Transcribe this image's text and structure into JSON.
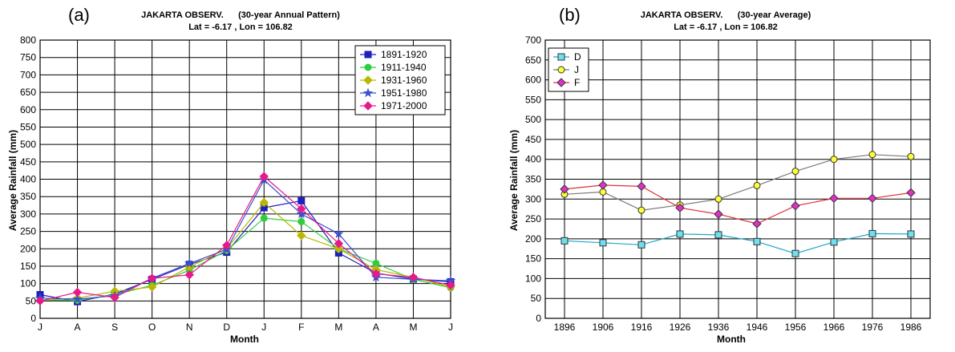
{
  "chart_data": [
    {
      "type": "line",
      "panel_label": "(a)",
      "title": "JAKARTA OBSERV.      (30-year Annual Pattern)",
      "subtitle": "Lat = -6.17 , Lon = 106.82",
      "xlabel": "Month",
      "ylabel": "Average Rainfall (mm)",
      "categories": [
        "J",
        "A",
        "S",
        "O",
        "N",
        "D",
        "J",
        "F",
        "M",
        "A",
        "M",
        "J"
      ],
      "ylim": [
        0,
        800
      ],
      "yticks": [
        0,
        50,
        100,
        150,
        200,
        250,
        300,
        350,
        400,
        450,
        500,
        550,
        600,
        650,
        700,
        750,
        800
      ],
      "grid": true,
      "legend_position": "top-right",
      "series": [
        {
          "name": "1891-1920",
          "color": "#1f1fbf",
          "marker": "square",
          "values": [
            68,
            48,
            70,
            112,
            155,
            190,
            318,
            338,
            188,
            130,
            113,
            105
          ]
        },
        {
          "name": "1911-1940",
          "color": "#2ecc40",
          "marker": "circle",
          "values": [
            52,
            52,
            68,
            95,
            138,
            195,
            288,
            278,
            200,
            158,
            112,
            88
          ]
        },
        {
          "name": "1931-1960",
          "color": "#b8b800",
          "marker": "diamond",
          "values": [
            52,
            58,
            78,
            90,
            148,
            200,
            333,
            238,
            200,
            140,
            118,
            90
          ]
        },
        {
          "name": "1951-1980",
          "color": "#3a4fd0",
          "marker": "star",
          "values": [
            58,
            55,
            65,
            115,
            158,
            198,
            398,
            300,
            243,
            118,
            112,
            108
          ]
        },
        {
          "name": "1971-2000",
          "color": "#e8198b",
          "marker": "diamond",
          "values": [
            50,
            75,
            60,
            115,
            125,
            210,
            408,
            315,
            215,
            128,
            118,
            95
          ]
        }
      ]
    },
    {
      "type": "line",
      "panel_label": "(b)",
      "title": "JAKARTA OBSERV.      (30-year Average)",
      "subtitle": "Lat = -6.17 , Lon = 106.82",
      "xlabel": "Month",
      "ylabel": "Average Rainfall (mm)",
      "categories": [
        "1896",
        "1906",
        "1916",
        "1926",
        "1936",
        "1946",
        "1956",
        "1966",
        "1976",
        "1986"
      ],
      "ylim": [
        0,
        700
      ],
      "yticks": [
        0,
        50,
        100,
        150,
        200,
        250,
        300,
        350,
        400,
        450,
        500,
        550,
        600,
        650,
        700
      ],
      "grid": true,
      "legend_position": "top-left",
      "series": [
        {
          "name": "D",
          "color": "#1fa8c8",
          "fill": "#6ee0f0",
          "marker": "square",
          "values": [
            195,
            190,
            185,
            212,
            210,
            193,
            163,
            192,
            213,
            212
          ]
        },
        {
          "name": "J",
          "color": "#7a7a7a",
          "fill": "#ffff33",
          "marker": "circle",
          "values": [
            312,
            318,
            272,
            285,
            300,
            334,
            370,
            400,
            412,
            407
          ]
        },
        {
          "name": "F",
          "color": "#e0303a",
          "fill": "#e030c8",
          "marker": "diamond",
          "values": [
            325,
            335,
            332,
            278,
            262,
            238,
            283,
            302,
            302,
            316
          ]
        }
      ]
    }
  ]
}
